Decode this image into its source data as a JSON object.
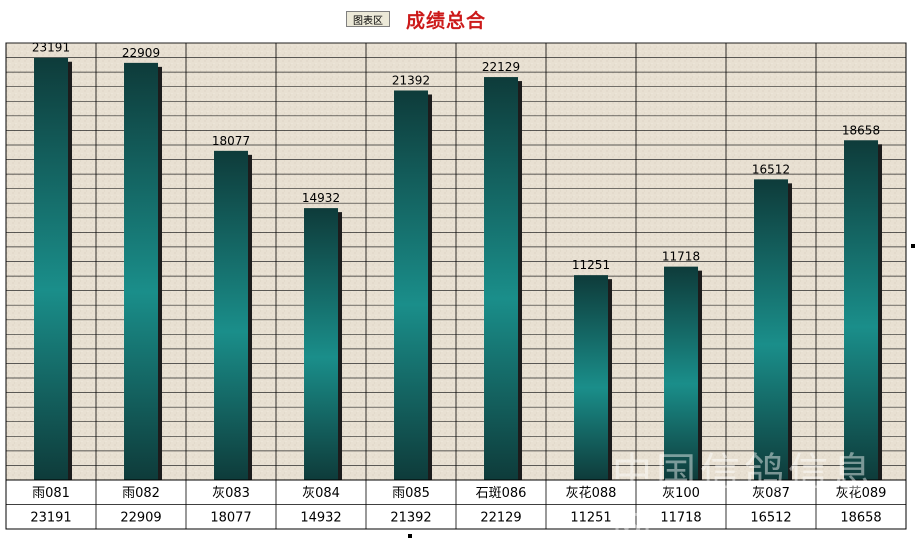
{
  "header": {
    "tag_label": "图表区",
    "title": "成绩总合"
  },
  "chart_data": {
    "type": "bar",
    "title": "成绩总合",
    "categories": [
      "雨081",
      "雨082",
      "灰083",
      "灰084",
      "雨085",
      "石斑086",
      "灰花088",
      "灰100",
      "灰087",
      "灰花089"
    ],
    "values": [
      23191,
      22909,
      18077,
      14932,
      21392,
      22129,
      11251,
      11718,
      16512,
      18658
    ],
    "ylim": [
      0,
      24000
    ],
    "grid": true,
    "legend": "none",
    "data_table": true
  },
  "colors": {
    "bar_top": "#0e3b3a",
    "bar_mid": "#1a8e8a",
    "bar_bottom": "#0e3b3a",
    "plot_bg": "#e8e0d2",
    "title": "#cc1a1a"
  },
  "watermark": "中国信鸽信息网"
}
